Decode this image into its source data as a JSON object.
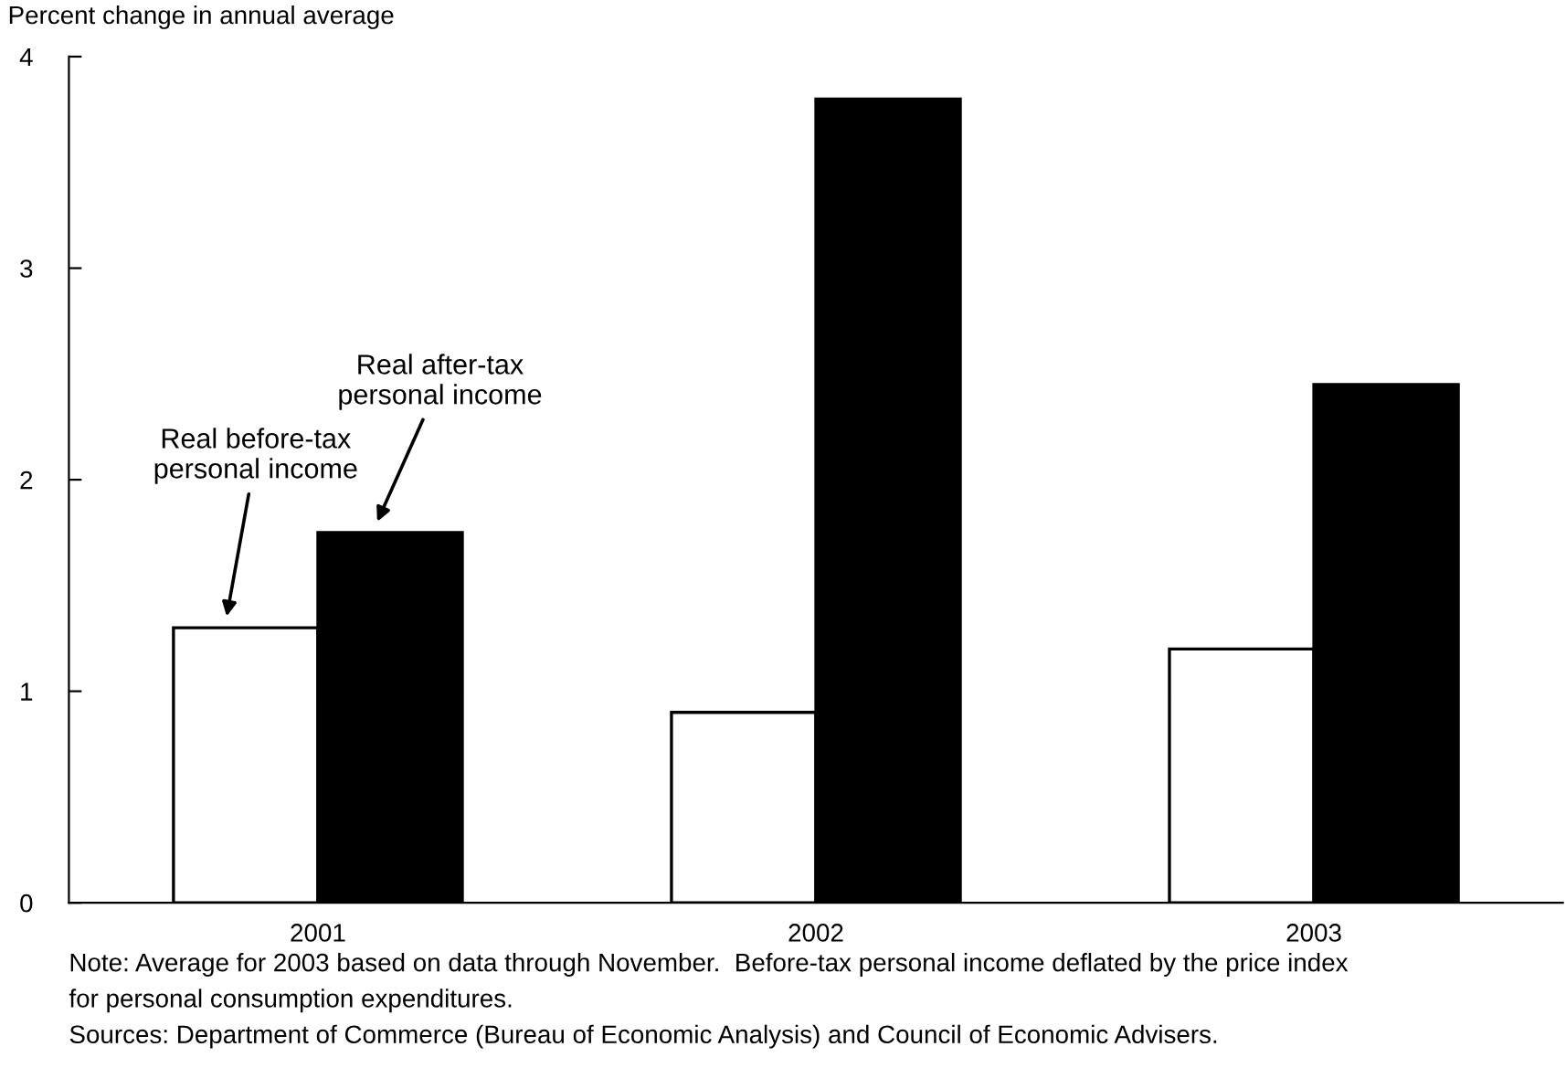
{
  "chart_data": {
    "type": "bar",
    "ylabel": "Percent change in annual average",
    "categories": [
      "2001",
      "2002",
      "2003"
    ],
    "series": [
      {
        "name": "Real before-tax\npersonal income",
        "color": "#ffffff",
        "values": [
          1.3,
          0.9,
          1.2
        ]
      },
      {
        "name": "Real after-tax\npersonal income",
        "color": "#000000",
        "values": [
          1.75,
          3.8,
          2.45
        ]
      }
    ],
    "ylim": [
      0,
      4
    ],
    "yticks": [
      0,
      1,
      2,
      3,
      4
    ],
    "grid": false,
    "legend": false,
    "annotations": [
      "Note: Average for 2003 based on data through November.  Before-tax personal income deflated by the price index",
      "for personal consumption expenditures.",
      "Sources: Department of Commerce (Bureau of Economic Analysis) and Council of Economic Advisers."
    ]
  }
}
